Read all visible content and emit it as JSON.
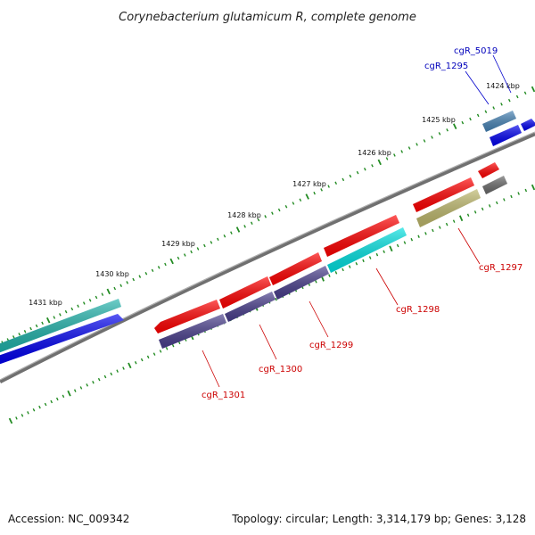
{
  "title": "Corynebacterium glutamicum R, complete genome",
  "footer": {
    "accession": "Accession: NC_009342",
    "topology": "Topology: circular; Length: 3,314,179 bp; Genes: 3,128"
  },
  "colors": {
    "backbone": "#808080",
    "tick": "#228b22",
    "label_red": "#cc0000",
    "label_blue": "#0000bb",
    "leader_red": "#cc0000",
    "leader_blue": "#0000cc",
    "red": "#ff0000",
    "blue": "#0000ee",
    "cyan": "#00e0e0",
    "teal": "#20b2aa",
    "navy": "#483d8b",
    "olive": "#bdb76b",
    "gray": "#696969",
    "steel": "#4682b4"
  },
  "kbp_labels": [
    "1424 kbp",
    "1425 kbp",
    "1426 kbp",
    "1427 kbp",
    "1428 kbp",
    "1429 kbp",
    "1430 kbp",
    "1431 kbp"
  ],
  "gene_labels": [
    {
      "name": "cgR_5019",
      "color": "blue"
    },
    {
      "name": "cgR_1295",
      "color": "blue"
    },
    {
      "name": "cgR_1297",
      "color": "red"
    },
    {
      "name": "cgR_1298",
      "color": "red"
    },
    {
      "name": "cgR_1299",
      "color": "red"
    },
    {
      "name": "cgR_1300",
      "color": "red"
    },
    {
      "name": "cgR_1301",
      "color": "red"
    }
  ]
}
